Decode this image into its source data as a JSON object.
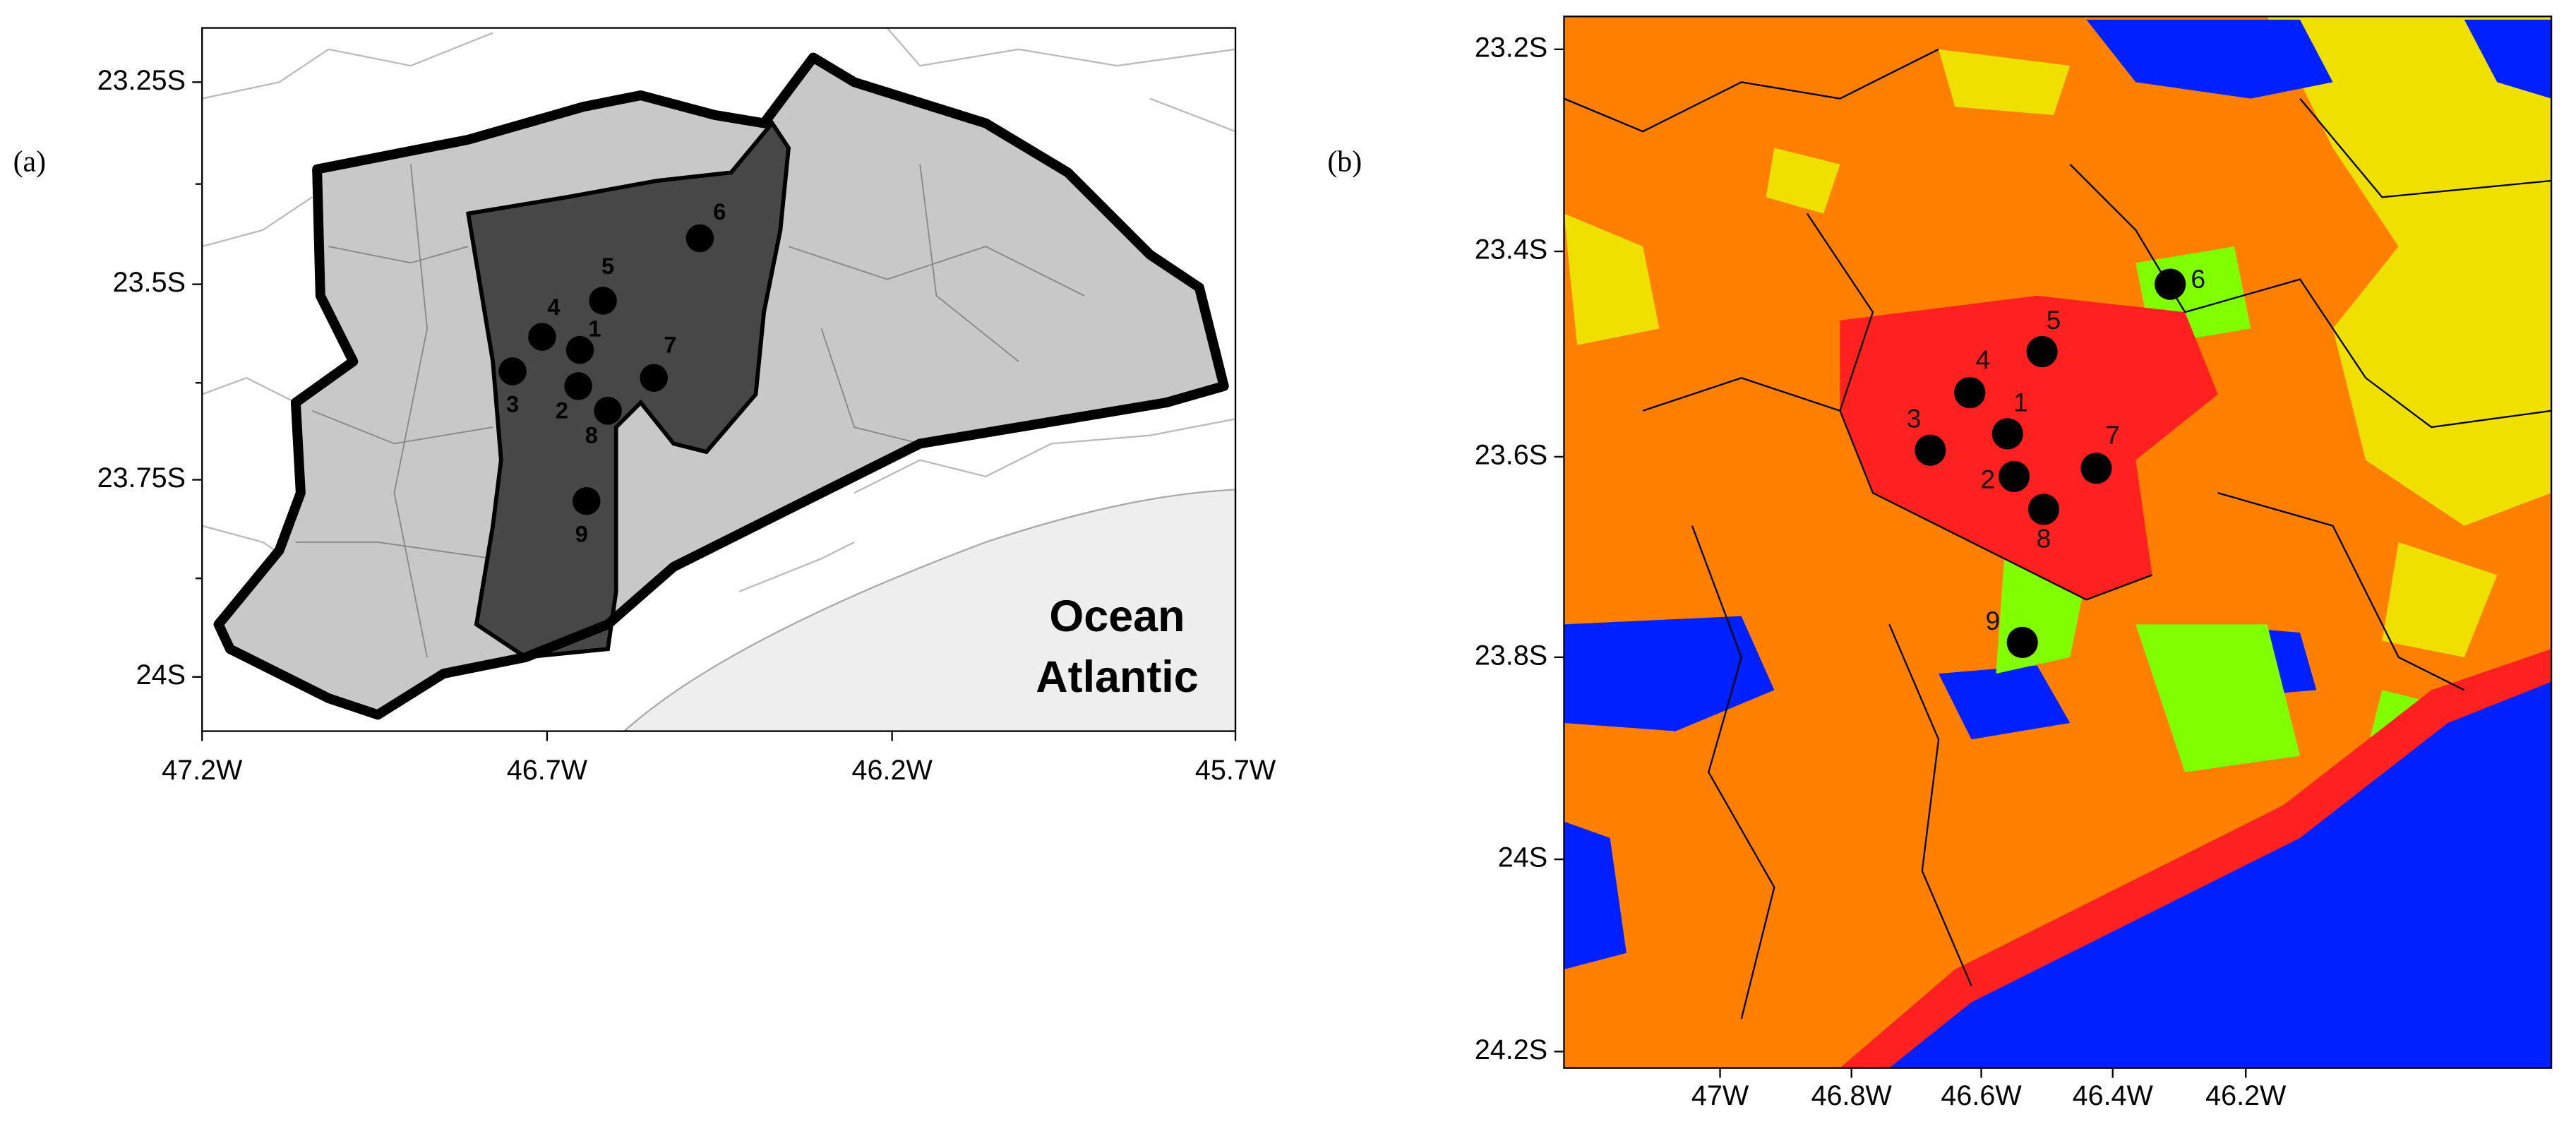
{
  "panels": [
    {
      "label": "(a)",
      "y_ticks": [
        "23.25S",
        "23.5S",
        "23.75S",
        "24S"
      ],
      "x_ticks": [
        "47.2W",
        "46.7W",
        "46.2W",
        "45.7W"
      ],
      "stations": [
        "1",
        "2",
        "3",
        "4",
        "5",
        "6",
        "7",
        "8",
        "9"
      ],
      "annotation": [
        "Ocean",
        "Atlantic"
      ]
    },
    {
      "label": "(b)",
      "y_ticks": [
        "23.2S",
        "23.4S",
        "23.6S",
        "23.8S",
        "24S",
        "24.2S"
      ],
      "x_ticks": [
        "47W",
        "46.8W",
        "46.6W",
        "46.4W",
        "46.2W"
      ],
      "stations": [
        "1",
        "2",
        "3",
        "4",
        "5",
        "6",
        "7",
        "8",
        "9"
      ]
    }
  ]
}
